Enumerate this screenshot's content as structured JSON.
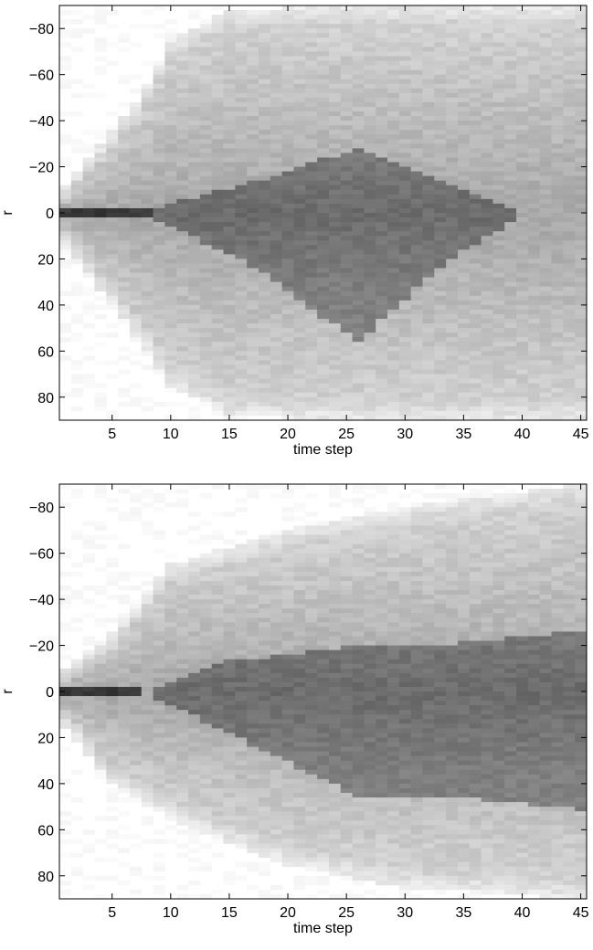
{
  "chart_data": [
    {
      "type": "heatmap",
      "colormap": "gray (white = low, dark = high)",
      "xlabel": "time step",
      "ylabel": "r",
      "xlim": [
        0.5,
        45.5
      ],
      "ylim": [
        -90,
        90
      ],
      "y_reversed": true,
      "grid": false,
      "xticks": [
        5,
        10,
        15,
        20,
        25,
        30,
        35,
        40,
        45
      ],
      "xtick_labels": [
        "5",
        "10",
        "15",
        "20",
        "25",
        "30",
        "35",
        "40",
        "45"
      ],
      "yticks": [
        -80,
        -60,
        -40,
        -20,
        0,
        20,
        40,
        60,
        80
      ],
      "ytick_labels": [
        "−80",
        "−60",
        "−40",
        "−20",
        "0",
        "20",
        "40",
        "60",
        "80"
      ],
      "pattern": "diamond",
      "spread_upper_boundary": [
        [
          1,
          -12
        ],
        [
          5,
          -35
        ],
        [
          8,
          -55
        ],
        [
          10,
          -75
        ],
        [
          15,
          -88
        ],
        [
          25,
          -90
        ],
        [
          45,
          -90
        ]
      ],
      "spread_lower_boundary": [
        [
          1,
          15
        ],
        [
          5,
          40
        ],
        [
          8,
          60
        ],
        [
          10,
          75
        ],
        [
          15,
          88
        ],
        [
          25,
          90
        ],
        [
          45,
          90
        ]
      ],
      "dark_core_upper_edge": [
        [
          8,
          0
        ],
        [
          17,
          -12
        ],
        [
          26,
          -27
        ],
        [
          33,
          -12
        ],
        [
          40,
          0
        ],
        [
          45,
          0
        ]
      ],
      "dark_core_lower_edge": [
        [
          8,
          0
        ],
        [
          17,
          22
        ],
        [
          26,
          55
        ],
        [
          33,
          22
        ],
        [
          40,
          0
        ],
        [
          45,
          0
        ]
      ],
      "peak_line": {
        "y": 0,
        "x_from": 1,
        "x_to": 8
      }
    },
    {
      "type": "heatmap",
      "colormap": "gray (white = low, dark = high)",
      "xlabel": "time step",
      "ylabel": "r",
      "xlim": [
        0.5,
        45.5
      ],
      "ylim": [
        -90,
        90
      ],
      "y_reversed": true,
      "grid": false,
      "xticks": [
        5,
        10,
        15,
        20,
        25,
        30,
        35,
        40,
        45
      ],
      "xtick_labels": [
        "5",
        "10",
        "15",
        "20",
        "25",
        "30",
        "35",
        "40",
        "45"
      ],
      "yticks": [
        -80,
        -60,
        -40,
        -20,
        0,
        20,
        40,
        60,
        80
      ],
      "ytick_labels": [
        "−80",
        "−60",
        "−40",
        "−20",
        "0",
        "20",
        "40",
        "60",
        "80"
      ],
      "pattern": "cone",
      "spread_upper_boundary": [
        [
          1,
          -10
        ],
        [
          5,
          -25
        ],
        [
          10,
          -55
        ],
        [
          20,
          -70
        ],
        [
          30,
          -80
        ],
        [
          45,
          -90
        ]
      ],
      "spread_lower_boundary": [
        [
          1,
          15
        ],
        [
          5,
          40
        ],
        [
          10,
          55
        ],
        [
          20,
          75
        ],
        [
          30,
          85
        ],
        [
          45,
          90
        ]
      ],
      "dark_core_upper_edge": [
        [
          8,
          0
        ],
        [
          15,
          -12
        ],
        [
          25,
          -18
        ],
        [
          35,
          -20
        ],
        [
          45,
          -25
        ]
      ],
      "dark_core_lower_edge": [
        [
          8,
          0
        ],
        [
          17,
          22
        ],
        [
          26,
          45
        ],
        [
          35,
          45
        ],
        [
          45,
          50
        ]
      ],
      "peak_line": {
        "y": 0,
        "x_from": 1,
        "x_to": 7
      }
    }
  ]
}
